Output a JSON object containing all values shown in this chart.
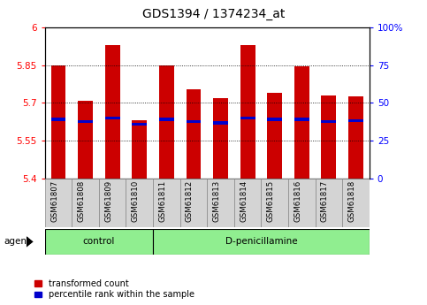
{
  "title": "GDS1394 / 1374234_at",
  "samples": [
    "GSM61807",
    "GSM61808",
    "GSM61809",
    "GSM61810",
    "GSM61811",
    "GSM61812",
    "GSM61813",
    "GSM61814",
    "GSM61815",
    "GSM61816",
    "GSM61817",
    "GSM61818"
  ],
  "bar_values": [
    5.85,
    5.71,
    5.93,
    5.63,
    5.85,
    5.755,
    5.72,
    5.93,
    5.74,
    5.845,
    5.73,
    5.725
  ],
  "percentile_values": [
    5.635,
    5.625,
    5.64,
    5.615,
    5.635,
    5.625,
    5.62,
    5.64,
    5.635,
    5.635,
    5.625,
    5.63
  ],
  "bar_bottom": 5.4,
  "ymin": 5.4,
  "ymax": 6.0,
  "yticks": [
    5.4,
    5.55,
    5.7,
    5.85,
    6.0
  ],
  "ytick_labels": [
    "5.4",
    "5.55",
    "5.7",
    "5.85",
    "6"
  ],
  "right_yticks_pct": [
    0,
    25,
    50,
    75,
    100
  ],
  "right_ytick_labels": [
    "0",
    "25",
    "50",
    "75",
    "100%"
  ],
  "ctrl_count": 4,
  "total_count": 12,
  "bar_color": "#cc0000",
  "percentile_color": "#0000cc",
  "bg_color": "#ffffff",
  "grid_color": "#000000",
  "title_fontsize": 10,
  "tick_fontsize": 7.5,
  "bar_width": 0.55,
  "group_bg": "#90EE90",
  "sample_bg": "#d4d4d4",
  "legend_labels": [
    "transformed count",
    "percentile rank within the sample"
  ],
  "legend_colors": [
    "#cc0000",
    "#0000cc"
  ]
}
